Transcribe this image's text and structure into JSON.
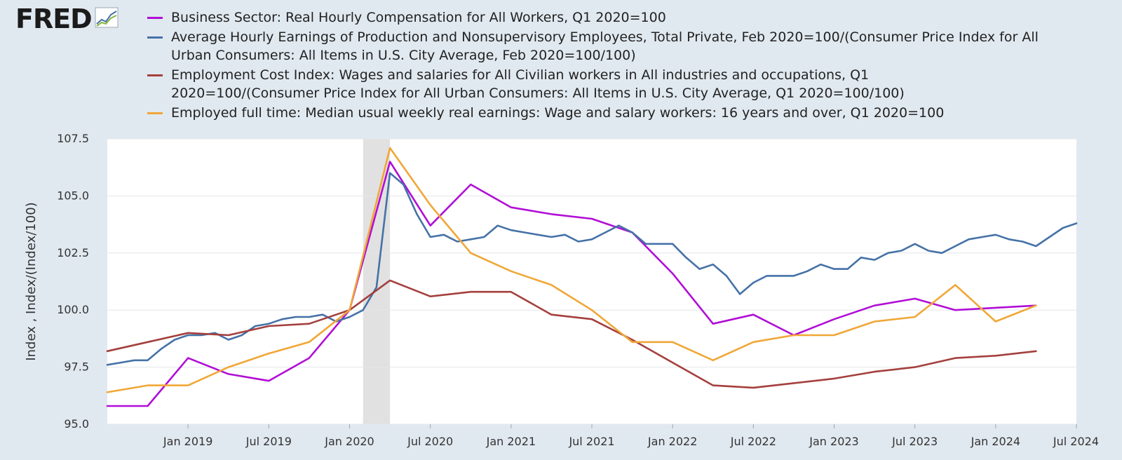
{
  "logo": {
    "text": "FRED"
  },
  "chart_data": {
    "type": "line",
    "ylabel": "Index , Index/(Index/100)",
    "ylim": [
      95,
      107.5
    ],
    "yticks": [
      95.0,
      97.5,
      100.0,
      102.5,
      105.0,
      107.5
    ],
    "ytick_labels": [
      "95.0",
      "97.5",
      "100.0",
      "102.5",
      "105.0",
      "107.5"
    ],
    "xlim": [
      "2018-07",
      "2024-07"
    ],
    "xticks": [
      "2019-01",
      "2019-07",
      "2020-01",
      "2020-07",
      "2021-01",
      "2021-07",
      "2022-01",
      "2022-07",
      "2023-01",
      "2023-07",
      "2024-01",
      "2024-07"
    ],
    "xtick_labels": [
      "Jan 2019",
      "Jul 2019",
      "Jan 2020",
      "Jul 2020",
      "Jan 2021",
      "Jul 2021",
      "Jan 2022",
      "Jul 2022",
      "Jan 2023",
      "Jul 2023",
      "Jan 2024",
      "Jul 2024"
    ],
    "grid": true,
    "legend_position": "top",
    "recession": {
      "start": "2020-02",
      "end": "2020-04"
    },
    "series": [
      {
        "name": "Business Sector: Real Hourly Compensation for All Workers, Q1 2020=100",
        "color": "#b10ed6",
        "points": [
          [
            "2018-07",
            95.8
          ],
          [
            "2018-10",
            95.8
          ],
          [
            "2019-01",
            97.9
          ],
          [
            "2019-04",
            97.2
          ],
          [
            "2019-07",
            96.9
          ],
          [
            "2019-10",
            97.9
          ],
          [
            "2020-01",
            100.0
          ],
          [
            "2020-04",
            106.5
          ],
          [
            "2020-07",
            103.7
          ],
          [
            "2020-10",
            105.5
          ],
          [
            "2021-01",
            104.5
          ],
          [
            "2021-04",
            104.2
          ],
          [
            "2021-07",
            104.0
          ],
          [
            "2021-10",
            103.4
          ],
          [
            "2022-01",
            101.6
          ],
          [
            "2022-04",
            99.4
          ],
          [
            "2022-07",
            99.8
          ],
          [
            "2022-10",
            98.9
          ],
          [
            "2023-01",
            99.6
          ],
          [
            "2023-04",
            100.2
          ],
          [
            "2023-07",
            100.5
          ],
          [
            "2023-10",
            100.0
          ],
          [
            "2024-01",
            100.1
          ],
          [
            "2024-04",
            100.2
          ]
        ]
      },
      {
        "name": "Average Hourly Earnings of Production and Nonsupervisory Employees, Total Private, Feb 2020=100/(Consumer Price Index for All Urban Consumers: All Items in U.S. City Average, Feb 2020=100/100)",
        "color": "#4572a7",
        "points": [
          [
            "2018-07",
            97.6
          ],
          [
            "2018-08",
            97.7
          ],
          [
            "2018-09",
            97.8
          ],
          [
            "2018-10",
            97.8
          ],
          [
            "2018-11",
            98.3
          ],
          [
            "2018-12",
            98.7
          ],
          [
            "2019-01",
            98.9
          ],
          [
            "2019-02",
            98.9
          ],
          [
            "2019-03",
            99.0
          ],
          [
            "2019-04",
            98.7
          ],
          [
            "2019-05",
            98.9
          ],
          [
            "2019-06",
            99.3
          ],
          [
            "2019-07",
            99.4
          ],
          [
            "2019-08",
            99.6
          ],
          [
            "2019-09",
            99.7
          ],
          [
            "2019-10",
            99.7
          ],
          [
            "2019-11",
            99.8
          ],
          [
            "2019-12",
            99.5
          ],
          [
            "2020-01",
            99.7
          ],
          [
            "2020-02",
            100.0
          ],
          [
            "2020-03",
            101.0
          ],
          [
            "2020-04",
            106.0
          ],
          [
            "2020-05",
            105.5
          ],
          [
            "2020-06",
            104.2
          ],
          [
            "2020-07",
            103.2
          ],
          [
            "2020-08",
            103.3
          ],
          [
            "2020-09",
            103.0
          ],
          [
            "2020-10",
            103.1
          ],
          [
            "2020-11",
            103.2
          ],
          [
            "2020-12",
            103.7
          ],
          [
            "2021-01",
            103.5
          ],
          [
            "2021-02",
            103.4
          ],
          [
            "2021-03",
            103.3
          ],
          [
            "2021-04",
            103.2
          ],
          [
            "2021-05",
            103.3
          ],
          [
            "2021-06",
            103.0
          ],
          [
            "2021-07",
            103.1
          ],
          [
            "2021-08",
            103.4
          ],
          [
            "2021-09",
            103.7
          ],
          [
            "2021-10",
            103.4
          ],
          [
            "2021-11",
            102.9
          ],
          [
            "2021-12",
            102.9
          ],
          [
            "2022-01",
            102.9
          ],
          [
            "2022-02",
            102.3
          ],
          [
            "2022-03",
            101.8
          ],
          [
            "2022-04",
            102.0
          ],
          [
            "2022-05",
            101.5
          ],
          [
            "2022-06",
            100.7
          ],
          [
            "2022-07",
            101.2
          ],
          [
            "2022-08",
            101.5
          ],
          [
            "2022-09",
            101.5
          ],
          [
            "2022-10",
            101.5
          ],
          [
            "2022-11",
            101.7
          ],
          [
            "2022-12",
            102.0
          ],
          [
            "2023-01",
            101.8
          ],
          [
            "2023-02",
            101.8
          ],
          [
            "2023-03",
            102.3
          ],
          [
            "2023-04",
            102.2
          ],
          [
            "2023-05",
            102.5
          ],
          [
            "2023-06",
            102.6
          ],
          [
            "2023-07",
            102.9
          ],
          [
            "2023-08",
            102.6
          ],
          [
            "2023-09",
            102.5
          ],
          [
            "2023-10",
            102.8
          ],
          [
            "2023-11",
            103.1
          ],
          [
            "2023-12",
            103.2
          ],
          [
            "2024-01",
            103.3
          ],
          [
            "2024-02",
            103.1
          ],
          [
            "2024-03",
            103.0
          ],
          [
            "2024-04",
            102.8
          ],
          [
            "2024-05",
            103.2
          ],
          [
            "2024-06",
            103.6
          ],
          [
            "2024-07",
            103.8
          ]
        ]
      },
      {
        "name": "Employment Cost Index: Wages and salaries for All Civilian workers in All industries and occupations, Q1 2020=100/(Consumer Price Index for All Urban Consumers: All Items in U.S. City Average, Q1 2020=100/100)",
        "color": "#a4403e",
        "points": [
          [
            "2018-07",
            98.2
          ],
          [
            "2018-10",
            98.6
          ],
          [
            "2019-01",
            99.0
          ],
          [
            "2019-04",
            98.9
          ],
          [
            "2019-07",
            99.3
          ],
          [
            "2019-10",
            99.4
          ],
          [
            "2020-01",
            100.0
          ],
          [
            "2020-04",
            101.3
          ],
          [
            "2020-07",
            100.6
          ],
          [
            "2020-10",
            100.8
          ],
          [
            "2021-01",
            100.8
          ],
          [
            "2021-04",
            99.8
          ],
          [
            "2021-07",
            99.6
          ],
          [
            "2021-10",
            98.7
          ],
          [
            "2022-01",
            97.7
          ],
          [
            "2022-04",
            96.7
          ],
          [
            "2022-07",
            96.6
          ],
          [
            "2022-10",
            96.8
          ],
          [
            "2023-01",
            97.0
          ],
          [
            "2023-04",
            97.3
          ],
          [
            "2023-07",
            97.5
          ],
          [
            "2023-10",
            97.9
          ],
          [
            "2024-01",
            98.0
          ],
          [
            "2024-04",
            98.2
          ]
        ]
      },
      {
        "name": "Employed full time: Median usual weekly real earnings: Wage and salary workers: 16 years and over, Q1 2020=100",
        "color": "#f0a737",
        "points": [
          [
            "2018-07",
            96.4
          ],
          [
            "2018-10",
            96.7
          ],
          [
            "2019-01",
            96.7
          ],
          [
            "2019-04",
            97.5
          ],
          [
            "2019-07",
            98.1
          ],
          [
            "2019-10",
            98.6
          ],
          [
            "2020-01",
            100.0
          ],
          [
            "2020-04",
            107.1
          ],
          [
            "2020-07",
            104.6
          ],
          [
            "2020-10",
            102.5
          ],
          [
            "2021-01",
            101.7
          ],
          [
            "2021-04",
            101.1
          ],
          [
            "2021-07",
            100.0
          ],
          [
            "2021-10",
            98.6
          ],
          [
            "2022-01",
            98.6
          ],
          [
            "2022-04",
            97.8
          ],
          [
            "2022-07",
            98.6
          ],
          [
            "2022-10",
            98.9
          ],
          [
            "2023-01",
            98.9
          ],
          [
            "2023-04",
            99.5
          ],
          [
            "2023-07",
            99.7
          ],
          [
            "2023-10",
            101.1
          ],
          [
            "2024-01",
            99.5
          ],
          [
            "2024-04",
            100.2
          ]
        ]
      }
    ]
  }
}
